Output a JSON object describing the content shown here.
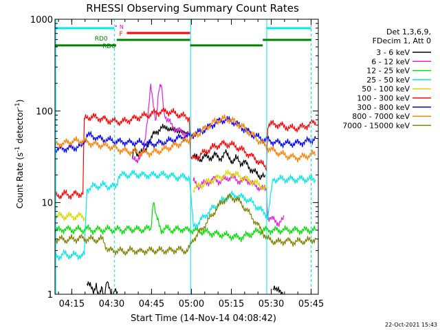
{
  "chart_data": {
    "type": "line",
    "title": "RHESSI Observing Summary Count Rates",
    "xlabel": "Start Time (14-Nov-14 04:08:42)",
    "ylabel_prefix": "Count Rate (s",
    "ylabel_middle": " detector",
    "ylabel_suffix": ")",
    "ylabel_exponent": "-1",
    "y_scale": "log",
    "ylim": [
      1,
      1000
    ],
    "xlim_minutes": [
      0,
      99
    ],
    "x_ticks": [
      {
        "label": "04:15",
        "minutes": 6.3
      },
      {
        "label": "04:30",
        "minutes": 21.3
      },
      {
        "label": "04:45",
        "minutes": 36.3
      },
      {
        "label": "05:00",
        "minutes": 51.3
      },
      {
        "label": "05:15",
        "minutes": 66.3
      },
      {
        "label": "05:30",
        "minutes": 81.3
      },
      {
        "label": "05:45",
        "minutes": 96.3
      }
    ],
    "y_ticks": [
      {
        "label": "1",
        "value": 1
      },
      {
        "label": "10",
        "value": 10
      },
      {
        "label": "100",
        "value": 100
      },
      {
        "label": "1000",
        "value": 1000
      }
    ],
    "legend_header": [
      "Det 1,3,6,9,",
      "FDecim 1, Att 0"
    ],
    "legend_position": "right",
    "series": [
      {
        "name": "3 - 6 keV",
        "color": "#000000",
        "x": [
          0,
          10,
          12,
          13.5,
          14.5,
          15.5,
          16.5,
          17.5,
          18.5,
          19.5,
          20.5,
          21.5,
          22.5,
          23.5,
          24,
          29,
          30,
          31,
          32,
          33,
          34,
          35,
          36,
          37,
          38,
          39,
          40,
          41,
          42,
          44,
          46,
          48,
          50,
          50.5,
          52,
          53,
          54,
          55,
          56,
          57,
          58,
          59,
          60,
          61,
          62,
          63,
          64,
          65,
          66,
          67,
          68,
          69,
          70,
          71,
          72,
          73,
          74,
          75,
          76,
          77,
          78,
          79,
          80,
          82,
          84,
          86
        ],
        "y": [
          null,
          null,
          1.3,
          1.2,
          1.1,
          1.3,
          0.8,
          1.2,
          1.0,
          1.4,
          1.1,
          0.9,
          1.2,
          1.0,
          null,
          30,
          38,
          34,
          36,
          35,
          37,
          45,
          48,
          55,
          60,
          62,
          64,
          65,
          68,
          60,
          64,
          56,
          60,
          null,
          34,
          31,
          29,
          30,
          33,
          31,
          30,
          32,
          34,
          31,
          30,
          33,
          35,
          32,
          30,
          28,
          30,
          29,
          27,
          28,
          26,
          24,
          23,
          22,
          20,
          19,
          21,
          18,
          null,
          1.1,
          1.2,
          0.9
        ]
      },
      {
        "name": "6 - 12 keV",
        "color": "#e020e0",
        "x": [
          0,
          29,
          30,
          31,
          32,
          33,
          34,
          35,
          36,
          37,
          38,
          39,
          40,
          41,
          42,
          43,
          44,
          45,
          46,
          47,
          48,
          49,
          50,
          50.5,
          52,
          53,
          54,
          55,
          56,
          58,
          60,
          62,
          64,
          66,
          68,
          70,
          72,
          74,
          76,
          78,
          79.5,
          80,
          82,
          84,
          86
        ],
        "y": [
          null,
          30,
          32,
          28,
          30,
          35,
          55,
          90,
          185,
          120,
          80,
          160,
          190,
          100,
          80,
          75,
          70,
          65,
          62,
          60,
          58,
          56,
          55,
          null,
          17,
          16,
          15,
          16,
          16,
          17,
          18,
          17,
          18,
          19,
          18,
          17,
          18,
          16,
          15,
          14,
          14,
          7,
          6.5,
          6,
          6.5
        ]
      },
      {
        "name": "12 - 25 keV",
        "color": "#00e000",
        "x": [
          0,
          2,
          4,
          6,
          8,
          10,
          12,
          14,
          16,
          18,
          20,
          22,
          24,
          26,
          28,
          30,
          32,
          34,
          36,
          37,
          38,
          40,
          42,
          44,
          46,
          48,
          50,
          51,
          52,
          56,
          60,
          64,
          66,
          68,
          70,
          72,
          74,
          76,
          78,
          80,
          82,
          84,
          86,
          88,
          90,
          92,
          94,
          96,
          98
        ],
        "y": [
          5.0,
          5.0,
          5.2,
          5.0,
          5.1,
          5.0,
          5.2,
          5.0,
          5.1,
          5.0,
          5.1,
          5.0,
          5.1,
          5.0,
          5.2,
          5.1,
          5.0,
          5.2,
          5.1,
          11,
          7,
          5.0,
          5.2,
          5.0,
          5.1,
          5.2,
          5.0,
          5.0,
          5.0,
          4.8,
          4.6,
          4.4,
          4.3,
          4.2,
          4.2,
          4.4,
          4.6,
          4.8,
          5.0,
          5.0,
          5.0,
          5.0,
          5.0,
          5.0,
          5.0,
          5.0,
          5.0,
          5.0,
          5.0
        ]
      },
      {
        "name": "25 - 50 keV",
        "color": "#00e8e8",
        "x": [
          0,
          2,
          4,
          6,
          8,
          10,
          11,
          12,
          14,
          16,
          18,
          20,
          22,
          23,
          24,
          26,
          28,
          30,
          32,
          34,
          36,
          38,
          40,
          42,
          44,
          46,
          48,
          50,
          50.5,
          52,
          54,
          56,
          58,
          60,
          62,
          64,
          66,
          68,
          70,
          72,
          74,
          76,
          78,
          79.5,
          80,
          82,
          84,
          86,
          88,
          90,
          92,
          94,
          96,
          98
        ],
        "y": [
          2.7,
          2.6,
          2.8,
          2.6,
          2.7,
          2.6,
          2.7,
          14,
          15,
          15,
          15.5,
          15,
          15,
          15,
          20,
          20,
          20,
          20.5,
          20,
          20,
          20,
          20,
          20,
          20,
          19.5,
          19,
          19,
          19,
          19,
          5.5,
          6,
          7,
          8,
          9,
          10,
          11,
          12,
          12,
          11.5,
          11,
          10,
          9,
          8,
          7.5,
          7,
          18,
          18,
          18,
          18,
          18,
          18,
          18,
          18,
          18
        ]
      },
      {
        "name": "50 - 100 keV",
        "color": "#d8d800",
        "x": [
          0,
          2,
          4,
          6,
          8,
          10,
          11,
          12,
          14,
          16,
          18,
          20,
          22,
          24,
          26,
          28,
          30,
          32,
          34,
          36,
          38,
          40,
          42,
          44,
          46,
          48,
          50,
          51,
          52,
          54,
          56,
          58,
          60,
          62,
          64,
          66,
          68,
          70,
          72,
          74,
          76,
          78,
          79.5,
          80
        ],
        "y": [
          7.0,
          7.2,
          7.0,
          7.1,
          7.0,
          7.2,
          7.0,
          null,
          null,
          null,
          null,
          null,
          null,
          null,
          null,
          null,
          null,
          null,
          null,
          null,
          null,
          null,
          null,
          null,
          null,
          null,
          null,
          null,
          14,
          15,
          16,
          17,
          18,
          19,
          20,
          21,
          20,
          19,
          18,
          17,
          16,
          15,
          14,
          null
        ]
      },
      {
        "name": "100 - 300 keV",
        "color": "#ff0000",
        "x": [
          0,
          2,
          4,
          6,
          8,
          10,
          10.5,
          11,
          12,
          14,
          16,
          18,
          20,
          22,
          24,
          26,
          28,
          30,
          32,
          34,
          36,
          38,
          40,
          42,
          44,
          46,
          48,
          50,
          50.5,
          51,
          52,
          54,
          56,
          58,
          60,
          62,
          64,
          66,
          68,
          70,
          72,
          74,
          76,
          78,
          79.5,
          80,
          82,
          84,
          86,
          88,
          90,
          92,
          94,
          96,
          98
        ],
        "y": [
          12,
          12,
          12.5,
          12,
          12.5,
          12.5,
          12.5,
          80,
          85,
          86,
          84,
          82,
          79,
          77,
          76,
          77,
          80,
          83,
          86,
          89,
          92,
          96,
          98,
          99,
          96,
          92,
          88,
          85,
          85,
          30,
          30,
          32,
          35,
          38,
          41,
          43,
          44,
          43,
          41,
          38,
          35,
          32,
          29,
          26,
          24,
          70,
          72,
          71,
          68,
          66,
          64,
          66,
          68,
          72,
          76
        ]
      },
      {
        "name": "300 - 800 keV",
        "color": "#0000ff",
        "x": [
          0,
          4,
          8,
          10,
          12,
          14,
          16,
          18,
          20,
          22,
          24,
          26,
          28,
          30,
          32,
          34,
          36,
          38,
          40,
          42,
          44,
          46,
          48,
          50,
          52,
          54,
          56,
          58,
          60,
          62,
          64,
          66,
          68,
          70,
          72,
          74,
          76,
          78,
          80,
          82,
          84,
          86,
          88,
          90,
          92,
          94,
          96,
          98
        ],
        "y": [
          38,
          39,
          40,
          41,
          55,
          53,
          51,
          49,
          48,
          47,
          46,
          46,
          45,
          45,
          45,
          44,
          44,
          44,
          45,
          46,
          48,
          50,
          52,
          53,
          55,
          58,
          62,
          67,
          73,
          78,
          80,
          78,
          73,
          67,
          61,
          56,
          52,
          49,
          48,
          46,
          45,
          44,
          44,
          44,
          45,
          46,
          48,
          50
        ]
      },
      {
        "name": "800 - 7000 keV",
        "color": "#ff8000",
        "x": [
          0,
          2,
          4,
          6,
          8,
          10,
          12,
          14,
          16,
          18,
          20,
          22,
          24,
          26,
          28,
          30,
          32,
          34,
          36,
          38,
          40,
          42,
          44,
          46,
          48,
          50,
          52,
          54,
          56,
          58,
          60,
          62,
          64,
          66,
          68,
          70,
          72,
          74,
          76,
          78,
          80,
          82,
          84,
          86,
          88,
          90,
          92,
          94,
          96,
          98
        ],
        "y": [
          42,
          44,
          45,
          46,
          47,
          47,
          46,
          44,
          43,
          42,
          41,
          40,
          38,
          37,
          36,
          36,
          35,
          35,
          35,
          36,
          37,
          39,
          41,
          43,
          46,
          48,
          52,
          57,
          63,
          70,
          76,
          80,
          82,
          80,
          75,
          69,
          62,
          55,
          49,
          44,
          40,
          37,
          35,
          33,
          32,
          31,
          31,
          32,
          33,
          34
        ]
      },
      {
        "name": "7000 - 15000 keV",
        "color": "#808000",
        "x": [
          0,
          2,
          4,
          6,
          8,
          10,
          12,
          14,
          16,
          18,
          20,
          22,
          24,
          26,
          28,
          30,
          32,
          34,
          36,
          38,
          40,
          42,
          44,
          46,
          48,
          50,
          52,
          54,
          56,
          58,
          60,
          62,
          64,
          66,
          68,
          70,
          72,
          74,
          76,
          78,
          80,
          82,
          84,
          86,
          88,
          90,
          92,
          94,
          96,
          98
        ],
        "y": [
          4.0,
          4.0,
          3.9,
          4.0,
          4.0,
          4.1,
          4.0,
          4.0,
          3.9,
          4.0,
          3.0,
          3.0,
          3.0,
          2.9,
          3.0,
          3.0,
          2.9,
          3.0,
          3.0,
          3.0,
          3.0,
          3.0,
          3.0,
          3.1,
          3.0,
          3.0,
          4.0,
          4.6,
          5.5,
          6.6,
          8.0,
          9.5,
          11,
          11.5,
          11,
          9.8,
          8.3,
          7.0,
          5.8,
          4.8,
          4.0,
          3.8,
          3.7,
          3.8,
          3.8,
          3.7,
          3.8,
          3.8,
          3.9,
          4.0
        ]
      }
    ],
    "attenuator_bars": [
      {
        "label": "N",
        "color": "#ff00ff",
        "x0": 22.7,
        "x1": 23.2,
        "row": "top"
      }
    ],
    "state_bars": [
      {
        "label": "",
        "color": "#00e8e8",
        "x0": 0,
        "x1": 22.3,
        "row": "top"
      },
      {
        "label": "",
        "color": "#00e8e8",
        "x0": 79.6,
        "x1": 96.3,
        "row": "top"
      },
      {
        "label": "F",
        "color": "#ff0000",
        "x0": 27,
        "x1": 50.8,
        "row": "flag"
      },
      {
        "label": "RD0",
        "color": "#008000",
        "x0": 23.2,
        "x1": 50.8,
        "row": "rd0"
      },
      {
        "label": "RD6",
        "color": "#008000",
        "x0": 0,
        "x1": 23,
        "row": "rd6"
      },
      {
        "label": "",
        "color": "#008000",
        "x0": 50.8,
        "x1": 78.1,
        "row": "rd6"
      },
      {
        "label": "",
        "color": "#008000",
        "x0": 78.1,
        "x1": 96.3,
        "row": "rd0"
      }
    ],
    "vlines": [
      {
        "minutes": 0.3,
        "style": "solid",
        "color": "#00e8e8"
      },
      {
        "minutes": 22.3,
        "style": "dashed",
        "color": "#00e8e8"
      },
      {
        "minutes": 51,
        "style": "solid",
        "color": "#00e8e8"
      },
      {
        "minutes": 79.6,
        "style": "solid",
        "color": "#00e8e8"
      },
      {
        "minutes": 96.3,
        "style": "dashed",
        "color": "#00e8e8"
      }
    ],
    "footer_timestamp": "22-Oct-2021 15:43"
  }
}
